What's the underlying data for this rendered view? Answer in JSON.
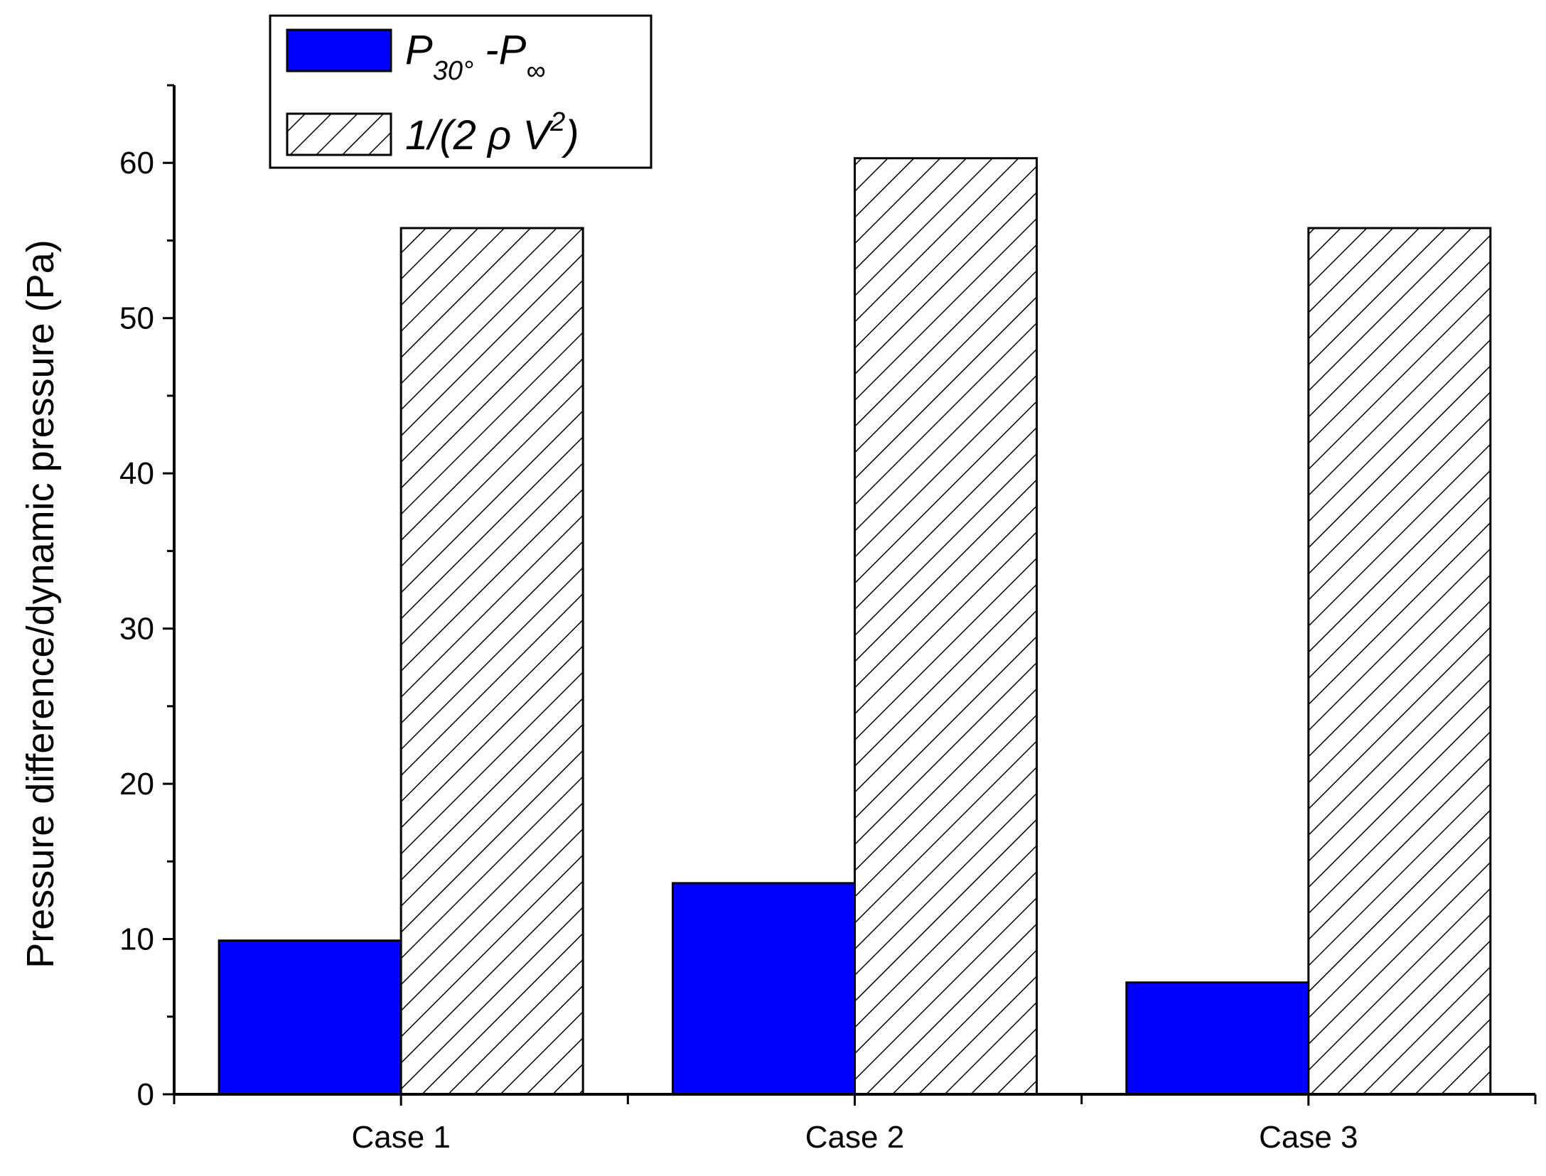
{
  "chart_data": {
    "type": "bar",
    "categories": [
      "Case 1",
      "Case 2",
      "Case 3"
    ],
    "series": [
      {
        "name": "P30°-P∞",
        "legend_parts": {
          "main": "P",
          "sub": "30°",
          "rest": " -P",
          "sub2": "∞"
        },
        "fill": "#0000ff",
        "pattern": "solid",
        "values": [
          9.9,
          13.6,
          7.2
        ]
      },
      {
        "name": "1/(2ρV2)",
        "legend_parts": {
          "main": "1/(2 ρ V",
          "sup": "2",
          "rest": ")"
        },
        "fill": "#ffffff",
        "pattern": "hatch",
        "values": [
          55.8,
          60.3,
          55.8
        ]
      }
    ],
    "xlabel": "",
    "ylabel": "Pressure difference/dynamic pressure (Pa)",
    "ylim": [
      0,
      65
    ],
    "yticks": [
      0,
      10,
      20,
      30,
      40,
      50,
      60
    ],
    "grid": false,
    "legend_position": "top-left"
  }
}
